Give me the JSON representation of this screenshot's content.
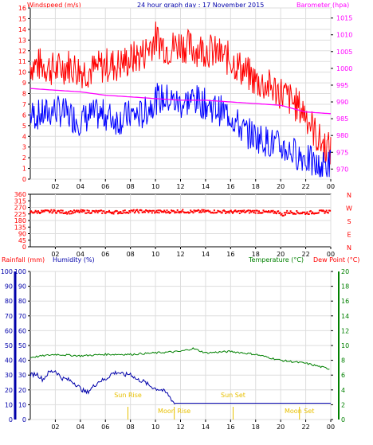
{
  "header": {
    "windspeed_label": "Windspeed (m/s)",
    "title": "24 hour graph day : 17 November 2015",
    "barometer_label": "Barometer (hpa)"
  },
  "colors": {
    "wind_max": "#ff0000",
    "wind_avg": "#0000ff",
    "barometer": "#ff00ff",
    "direction": "#ff0000",
    "rain": "#ff0000",
    "humidity": "#0000aa",
    "temperature": "#008000",
    "dewpoint": "#ff0000",
    "sun_moon": "#e8c000",
    "grid": "#dddddd",
    "axis": "#000000"
  },
  "chart_data": [
    {
      "type": "line",
      "panel": "wind",
      "x_ticks": [
        "02",
        "04",
        "06",
        "08",
        "10",
        "12",
        "14",
        "16",
        "18",
        "20",
        "22",
        "00"
      ],
      "y_left_ticks": [
        0,
        1,
        2,
        3,
        4,
        5,
        6,
        7,
        8,
        9,
        10,
        11,
        12,
        13,
        14,
        15,
        16
      ],
      "y_right_ticks": [
        970,
        975,
        980,
        985,
        990,
        995,
        1000,
        1005,
        1010,
        1015
      ],
      "ylim_left": [
        0,
        16
      ],
      "ylim_right": [
        967,
        1018
      ],
      "series": [
        {
          "name": "Windspeed (m/s)",
          "axis": "left",
          "role": "gust",
          "x": [
            0,
            1,
            2,
            3,
            4,
            5,
            6,
            7,
            8,
            9,
            10,
            11,
            12,
            13,
            14,
            15,
            16,
            17,
            18,
            19,
            20,
            21,
            22,
            23,
            24
          ],
          "y": [
            10.5,
            10.5,
            10,
            10.5,
            10,
            10,
            10.5,
            10.5,
            11,
            11.5,
            13,
            12,
            12.5,
            12,
            12,
            11.5,
            11,
            10,
            9,
            8.5,
            8,
            7,
            6,
            3.5,
            2.5
          ]
        },
        {
          "name": "Windspeed (m/s)",
          "axis": "left",
          "role": "average",
          "x": [
            0,
            1,
            2,
            3,
            4,
            5,
            6,
            7,
            8,
            9,
            10,
            11,
            12,
            13,
            14,
            15,
            16,
            17,
            18,
            19,
            20,
            21,
            22,
            23,
            24
          ],
          "y": [
            6,
            6,
            6.5,
            6,
            5.5,
            6,
            6,
            5.5,
            6,
            6,
            7.5,
            7.5,
            7,
            7.5,
            7,
            6.5,
            6,
            4.5,
            4,
            3.5,
            3,
            2.5,
            2,
            1,
            1.5
          ]
        },
        {
          "name": "Barometer (hpa)",
          "axis": "right",
          "x": [
            0,
            2,
            4,
            6,
            8,
            10,
            12,
            14,
            16,
            18,
            20,
            22,
            24
          ],
          "y": [
            994,
            993.5,
            993,
            992,
            991.5,
            991,
            990.5,
            990.5,
            990,
            989.5,
            989,
            987,
            986.5
          ]
        }
      ]
    },
    {
      "type": "scatter",
      "panel": "direction",
      "x_ticks": [
        "02",
        "04",
        "06",
        "08",
        "10",
        "12",
        "14",
        "16",
        "18",
        "20",
        "22",
        "00"
      ],
      "y_ticks": [
        0,
        45,
        90,
        135,
        180,
        225,
        270,
        315,
        360
      ],
      "ylim": [
        0,
        360
      ],
      "compass_labels": [
        "N",
        "W",
        "S",
        "E",
        "N"
      ],
      "series": [
        {
          "name": "Wind direction",
          "x": [
            0,
            1,
            2,
            3,
            4,
            5,
            6,
            7,
            8,
            9,
            10,
            11,
            12,
            13,
            14,
            15,
            16,
            17,
            18,
            19,
            20,
            21,
            22,
            23,
            24
          ],
          "y": [
            238,
            240,
            243,
            236,
            241,
            240,
            238,
            237,
            242,
            243,
            240,
            241,
            244,
            240,
            243,
            241,
            239,
            240,
            242,
            236,
            238,
            236,
            232,
            238,
            243
          ]
        }
      ]
    },
    {
      "type": "line",
      "panel": "rain-humidity-temperature",
      "x_ticks": [
        "02",
        "04",
        "06",
        "08",
        "10",
        "12",
        "14",
        "16",
        "18",
        "20",
        "22",
        "00"
      ],
      "y_left_ticks": [
        0,
        10,
        20,
        30,
        40,
        50,
        60,
        70,
        80,
        90,
        100
      ],
      "y_right_ticks": [
        0,
        2,
        4,
        6,
        8,
        10,
        12,
        14,
        16,
        18,
        20
      ],
      "ylim_left": [
        0,
        100
      ],
      "ylim_right": [
        0,
        20
      ],
      "labels": {
        "rainfall": "Rainfall (mm)",
        "humidity": "Humidity (%)",
        "temperature": "Temperature (°C)",
        "dewpoint": "Dew Point (°C)"
      },
      "series": [
        {
          "name": "Humidity (%)",
          "axis": "left",
          "x": [
            0,
            0.5,
            1,
            1.5,
            2,
            2.5,
            3,
            3.5,
            4,
            4.5,
            5,
            5.5,
            6,
            6.5,
            7,
            7.5,
            8,
            8.5,
            9,
            9.5,
            10,
            10.5,
            11,
            11.5,
            12,
            24
          ],
          "y": [
            30,
            31,
            27,
            32,
            33,
            28,
            27,
            25,
            21,
            18,
            22,
            26,
            27,
            31,
            32,
            30,
            31,
            27,
            26,
            23,
            21,
            20,
            17,
            11,
            11,
            11
          ]
        },
        {
          "name": "Temperature (°C)",
          "axis": "right",
          "x": [
            0,
            2,
            4,
            6,
            8,
            10,
            12,
            13,
            14,
            16,
            18,
            20,
            22,
            23,
            24
          ],
          "y": [
            8.4,
            8.8,
            8.6,
            8.8,
            8.8,
            9,
            9.2,
            9.6,
            9,
            9.2,
            8.8,
            8,
            7.6,
            7.2,
            6.8
          ]
        }
      ],
      "annotations": [
        {
          "text": "Sun Rise",
          "x": 7.8
        },
        {
          "text": "Moon Rise",
          "x": 11.5
        },
        {
          "text": "Sun Set",
          "x": 16.2
        },
        {
          "text": "Moon Set",
          "x": 21.5
        }
      ]
    }
  ]
}
